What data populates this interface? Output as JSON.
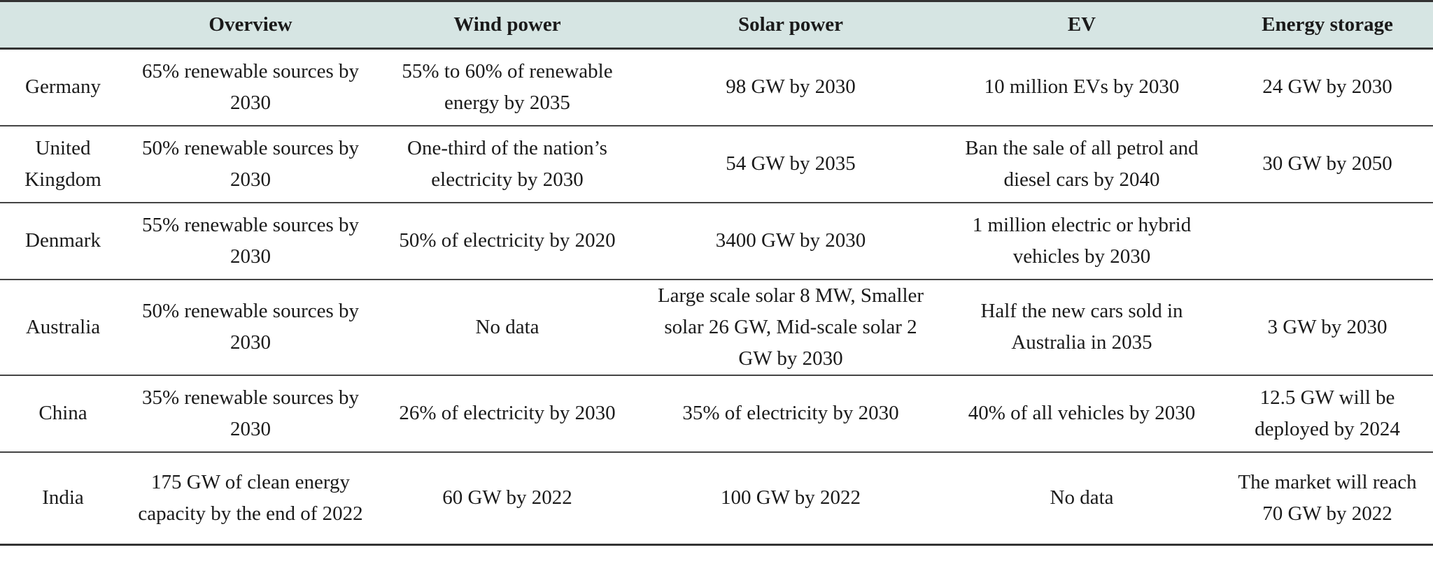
{
  "header": {
    "country": "",
    "overview": "Overview",
    "wind": "Wind power",
    "solar": "Solar power",
    "ev": "EV",
    "storage": "Energy storage"
  },
  "rows": [
    {
      "country": "Germany",
      "overview": "65% renewable sources by 2030",
      "wind": "55% to 60% of renewable energy by 2035",
      "solar": "98 GW by 2030",
      "ev": "10 million EVs by 2030",
      "storage": "24 GW by 2030"
    },
    {
      "country": "United Kingdom",
      "overview": "50% renewable sources by 2030",
      "wind": "One-third of the nation’s electricity by 2030",
      "solar": "54 GW by 2035",
      "ev": "Ban the sale of all petrol and diesel cars by 2040",
      "storage": "30 GW by 2050"
    },
    {
      "country": "Denmark",
      "overview": "55% renewable sources by 2030",
      "wind": "50% of electricity by 2020",
      "solar": "3400 GW by 2030",
      "ev": "1 million electric or hybrid vehicles by 2030",
      "storage": ""
    },
    {
      "country": "Australia",
      "overview": "50% renewable sources by 2030",
      "wind": "No data",
      "solar": "Large scale solar 8 MW, Smaller solar 26 GW, Mid-scale solar 2 GW by 2030",
      "ev": "Half the new cars sold in Australia in 2035",
      "storage": "3 GW by 2030"
    },
    {
      "country": "China",
      "overview": "35% renewable sources by 2030",
      "wind": "26% of electricity by 2030",
      "solar": "35% of electricity by 2030",
      "ev": "40% of all vehicles by 2030",
      "storage": "12.5 GW will be deployed by 2024"
    },
    {
      "country": "India",
      "overview": "175 GW of clean energy capacity by the end of 2022",
      "wind": "60 GW by 2022",
      "solar": "100 GW by 2022",
      "ev": "No data",
      "storage": "The market will reach 70 GW by 2022"
    }
  ]
}
